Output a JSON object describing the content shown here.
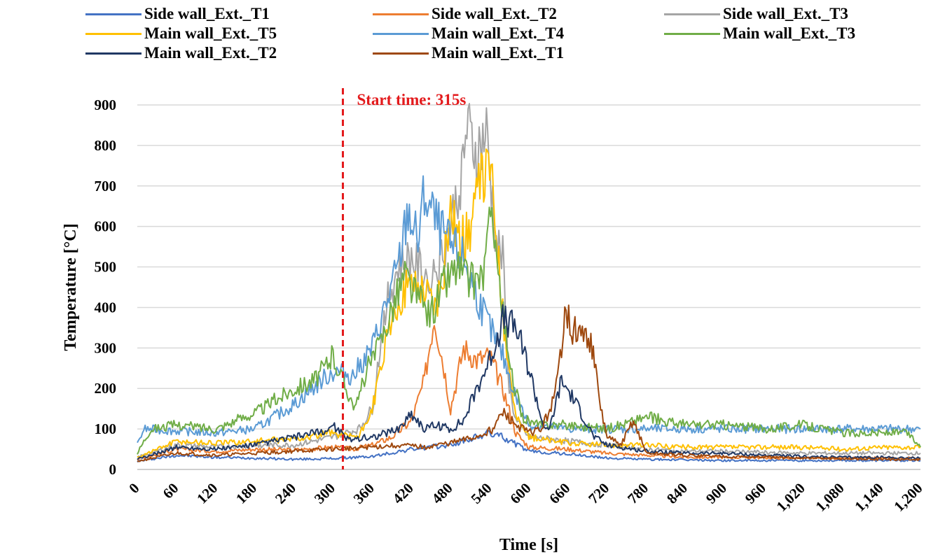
{
  "chart_data": {
    "type": "line",
    "title": "",
    "xlabel": "Time [s]",
    "ylabel": "Temperature  [°C]",
    "xlim": [
      0,
      1200
    ],
    "ylim": [
      0,
      900
    ],
    "x_ticks": [
      "0",
      "60",
      "120",
      "180",
      "240",
      "300",
      "360",
      "420",
      "480",
      "540",
      "600",
      "660",
      "720",
      "780",
      "840",
      "900",
      "960",
      "1,020",
      "1,080",
      "1,140",
      "1,200"
    ],
    "y_ticks": [
      "0",
      "100",
      "200",
      "300",
      "400",
      "500",
      "600",
      "700",
      "800",
      "900"
    ],
    "grid": "horizontal",
    "legend_position": "top",
    "annotation": {
      "text": "Start time:  315s",
      "x": 315,
      "color": "#e31a1c"
    },
    "series": [
      {
        "name": "Side wall_Ext._T1",
        "color": "#4472c4",
        "points": [
          [
            0,
            20
          ],
          [
            60,
            35
          ],
          [
            120,
            30
          ],
          [
            180,
            28
          ],
          [
            240,
            25
          ],
          [
            300,
            27
          ],
          [
            360,
            32
          ],
          [
            420,
            50
          ],
          [
            480,
            60
          ],
          [
            540,
            90
          ],
          [
            560,
            80
          ],
          [
            600,
            45
          ],
          [
            660,
            38
          ],
          [
            720,
            28
          ],
          [
            780,
            25
          ],
          [
            900,
            22
          ],
          [
            1020,
            22
          ],
          [
            1140,
            22
          ],
          [
            1200,
            22
          ]
        ]
      },
      {
        "name": "Side wall_Ext._T2",
        "color": "#ed7d31",
        "points": [
          [
            0,
            25
          ],
          [
            60,
            50
          ],
          [
            120,
            45
          ],
          [
            180,
            50
          ],
          [
            240,
            48
          ],
          [
            300,
            55
          ],
          [
            330,
            50
          ],
          [
            360,
            60
          ],
          [
            390,
            80
          ],
          [
            420,
            120
          ],
          [
            440,
            220
          ],
          [
            455,
            380
          ],
          [
            470,
            250
          ],
          [
            480,
            150
          ],
          [
            500,
            300
          ],
          [
            520,
            270
          ],
          [
            540,
            280
          ],
          [
            560,
            200
          ],
          [
            580,
            90
          ],
          [
            600,
            55
          ],
          [
            660,
            50
          ],
          [
            720,
            40
          ],
          [
            780,
            35
          ],
          [
            840,
            30
          ],
          [
            900,
            30
          ],
          [
            1020,
            28
          ],
          [
            1140,
            28
          ],
          [
            1200,
            28
          ]
        ]
      },
      {
        "name": "Side wall_Ext._T3",
        "color": "#a5a5a5",
        "points": [
          [
            0,
            30
          ],
          [
            60,
            60
          ],
          [
            120,
            55
          ],
          [
            180,
            60
          ],
          [
            240,
            60
          ],
          [
            300,
            80
          ],
          [
            340,
            100
          ],
          [
            360,
            150
          ],
          [
            380,
            400
          ],
          [
            400,
            500
          ],
          [
            420,
            520
          ],
          [
            440,
            480
          ],
          [
            460,
            500
          ],
          [
            480,
            600
          ],
          [
            495,
            720
          ],
          [
            505,
            840
          ],
          [
            520,
            780
          ],
          [
            535,
            830
          ],
          [
            550,
            560
          ],
          [
            560,
            520
          ],
          [
            570,
            200
          ],
          [
            580,
            120
          ],
          [
            600,
            80
          ],
          [
            660,
            70
          ],
          [
            720,
            60
          ],
          [
            780,
            50
          ],
          [
            840,
            45
          ],
          [
            900,
            45
          ],
          [
            1020,
            40
          ],
          [
            1140,
            40
          ],
          [
            1200,
            40
          ]
        ]
      },
      {
        "name": "Main wall_Ext._T5",
        "color": "#ffc000",
        "points": [
          [
            0,
            30
          ],
          [
            60,
            70
          ],
          [
            120,
            65
          ],
          [
            180,
            70
          ],
          [
            240,
            75
          ],
          [
            300,
            90
          ],
          [
            340,
            80
          ],
          [
            360,
            150
          ],
          [
            380,
            300
          ],
          [
            400,
            420
          ],
          [
            420,
            460
          ],
          [
            440,
            450
          ],
          [
            460,
            400
          ],
          [
            470,
            500
          ],
          [
            480,
            650
          ],
          [
            495,
            560
          ],
          [
            510,
            600
          ],
          [
            525,
            700
          ],
          [
            540,
            760
          ],
          [
            550,
            600
          ],
          [
            560,
            380
          ],
          [
            580,
            130
          ],
          [
            600,
            80
          ],
          [
            660,
            65
          ],
          [
            720,
            60
          ],
          [
            780,
            60
          ],
          [
            840,
            55
          ],
          [
            900,
            55
          ],
          [
            960,
            55
          ],
          [
            1020,
            55
          ],
          [
            1080,
            50
          ],
          [
            1140,
            55
          ],
          [
            1200,
            55
          ]
        ]
      },
      {
        "name": "Main wall_Ext._T4",
        "color": "#5b9bd5",
        "points": [
          [
            0,
            60
          ],
          [
            10,
            100
          ],
          [
            60,
            95
          ],
          [
            120,
            90
          ],
          [
            180,
            100
          ],
          [
            240,
            160
          ],
          [
            290,
            230
          ],
          [
            300,
            240
          ],
          [
            315,
            240
          ],
          [
            330,
            230
          ],
          [
            360,
            300
          ],
          [
            380,
            400
          ],
          [
            400,
            500
          ],
          [
            415,
            640
          ],
          [
            430,
            560
          ],
          [
            440,
            680
          ],
          [
            460,
            600
          ],
          [
            480,
            550
          ],
          [
            500,
            520
          ],
          [
            520,
            430
          ],
          [
            540,
            350
          ],
          [
            560,
            280
          ],
          [
            580,
            180
          ],
          [
            600,
            110
          ],
          [
            660,
            100
          ],
          [
            720,
            100
          ],
          [
            780,
            100
          ],
          [
            840,
            100
          ],
          [
            900,
            100
          ],
          [
            960,
            100
          ],
          [
            1020,
            100
          ],
          [
            1080,
            100
          ],
          [
            1140,
            100
          ],
          [
            1200,
            100
          ]
        ]
      },
      {
        "name": "Main wall_Ext._T3",
        "color": "#70ad47",
        "points": [
          [
            0,
            40
          ],
          [
            20,
            100
          ],
          [
            60,
            110
          ],
          [
            120,
            100
          ],
          [
            180,
            140
          ],
          [
            240,
            200
          ],
          [
            270,
            220
          ],
          [
            300,
            280
          ],
          [
            320,
            200
          ],
          [
            335,
            150
          ],
          [
            350,
            240
          ],
          [
            370,
            300
          ],
          [
            390,
            400
          ],
          [
            410,
            480
          ],
          [
            430,
            420
          ],
          [
            450,
            380
          ],
          [
            470,
            460
          ],
          [
            490,
            500
          ],
          [
            510,
            460
          ],
          [
            530,
            480
          ],
          [
            545,
            650
          ],
          [
            555,
            450
          ],
          [
            570,
            250
          ],
          [
            590,
            130
          ],
          [
            610,
            110
          ],
          [
            660,
            110
          ],
          [
            720,
            100
          ],
          [
            780,
            130
          ],
          [
            840,
            110
          ],
          [
            900,
            110
          ],
          [
            960,
            100
          ],
          [
            1020,
            110
          ],
          [
            1080,
            90
          ],
          [
            1140,
            90
          ],
          [
            1180,
            90
          ],
          [
            1200,
            55
          ]
        ]
      },
      {
        "name": "Main wall_Ext._T2",
        "color": "#203864",
        "points": [
          [
            0,
            25
          ],
          [
            60,
            55
          ],
          [
            120,
            50
          ],
          [
            180,
            60
          ],
          [
            240,
            80
          ],
          [
            290,
            95
          ],
          [
            300,
            110
          ],
          [
            320,
            75
          ],
          [
            360,
            80
          ],
          [
            400,
            100
          ],
          [
            420,
            140
          ],
          [
            440,
            100
          ],
          [
            460,
            110
          ],
          [
            480,
            100
          ],
          [
            500,
            120
          ],
          [
            520,
            200
          ],
          [
            540,
            270
          ],
          [
            560,
            370
          ],
          [
            580,
            350
          ],
          [
            600,
            250
          ],
          [
            620,
            120
          ],
          [
            630,
            90
          ],
          [
            650,
            220
          ],
          [
            670,
            170
          ],
          [
            700,
            80
          ],
          [
            720,
            60
          ],
          [
            780,
            45
          ],
          [
            840,
            40
          ],
          [
            900,
            40
          ],
          [
            960,
            35
          ],
          [
            1020,
            32
          ],
          [
            1080,
            30
          ],
          [
            1140,
            30
          ],
          [
            1200,
            28
          ]
        ]
      },
      {
        "name": "Main wall_Ext._T1",
        "color": "#9e480e",
        "points": [
          [
            0,
            20
          ],
          [
            60,
            40
          ],
          [
            120,
            35
          ],
          [
            180,
            40
          ],
          [
            240,
            45
          ],
          [
            300,
            50
          ],
          [
            360,
            55
          ],
          [
            400,
            60
          ],
          [
            440,
            55
          ],
          [
            480,
            65
          ],
          [
            520,
            80
          ],
          [
            545,
            100
          ],
          [
            560,
            140
          ],
          [
            580,
            110
          ],
          [
            600,
            90
          ],
          [
            620,
            100
          ],
          [
            640,
            180
          ],
          [
            650,
            300
          ],
          [
            655,
            410
          ],
          [
            665,
            350
          ],
          [
            680,
            330
          ],
          [
            695,
            320
          ],
          [
            710,
            150
          ],
          [
            720,
            80
          ],
          [
            740,
            60
          ],
          [
            760,
            120
          ],
          [
            780,
            40
          ],
          [
            840,
            35
          ],
          [
            900,
            32
          ],
          [
            960,
            30
          ],
          [
            1020,
            28
          ],
          [
            1080,
            26
          ],
          [
            1140,
            25
          ],
          [
            1200,
            24
          ]
        ]
      }
    ]
  }
}
